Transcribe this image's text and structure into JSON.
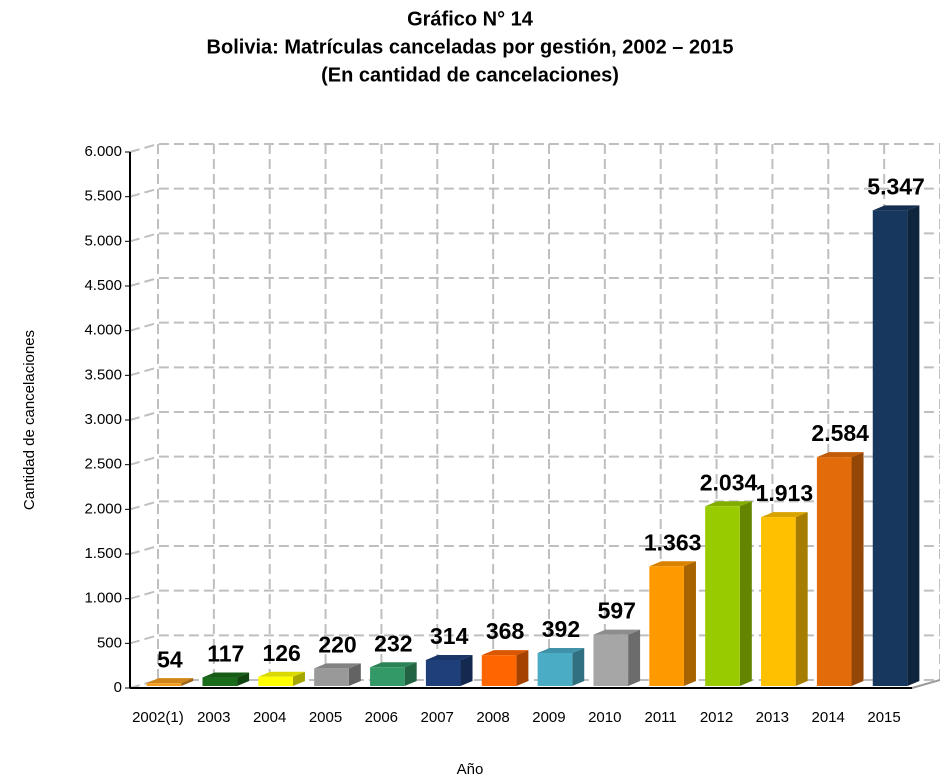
{
  "chart_data": {
    "type": "bar3d",
    "title": [
      "Gráfico N° 14",
      "Bolivia: Matrículas canceladas por gestión, 2002 – 2015",
      "(En cantidad de cancelaciones)"
    ],
    "y_label": "Cantidad de cancelaciones",
    "x_label": "Año",
    "categories": [
      "2002(1)",
      "2003",
      "2004",
      "2005",
      "2006",
      "2007",
      "2008",
      "2009",
      "2010",
      "2011",
      "2012",
      "2013",
      "2014",
      "2015"
    ],
    "values": [
      54,
      117,
      126,
      220,
      232,
      314,
      368,
      392,
      597,
      1363,
      2034,
      1913,
      2584,
      5347
    ],
    "value_labels": [
      "54",
      "117",
      "126",
      "220",
      "232",
      "314",
      "368",
      "392",
      "597",
      "1.363",
      "2.034",
      "1.913",
      "2.584",
      "5.347"
    ],
    "colors": [
      "#f39c1e",
      "#1a6b1a",
      "#ffff00",
      "#999999",
      "#339966",
      "#1f3f7a",
      "#ff6600",
      "#4bacc6",
      "#a6a6a6",
      "#ff9900",
      "#99cc00",
      "#ffc000",
      "#e36c0a",
      "#17375e"
    ],
    "ylim": [
      0,
      6000
    ],
    "yticks": [
      0,
      500,
      {
        "value": 1000,
        "label": "1.000"
      },
      {
        "value": 1500,
        "label": "1.500"
      },
      {
        "value": 2000,
        "label": "2.000"
      },
      {
        "value": 2500,
        "label": "2.500"
      },
      {
        "value": 3000,
        "label": "3.000"
      },
      {
        "value": 3500,
        "label": "3.500"
      },
      {
        "value": 4000,
        "label": "4.000"
      },
      {
        "value": 4500,
        "label": "4.500"
      },
      {
        "value": 5000,
        "label": "5.000"
      },
      {
        "value": 5500,
        "label": "5.500"
      },
      {
        "value": 6000,
        "label": "6.000"
      }
    ],
    "grid": true
  }
}
